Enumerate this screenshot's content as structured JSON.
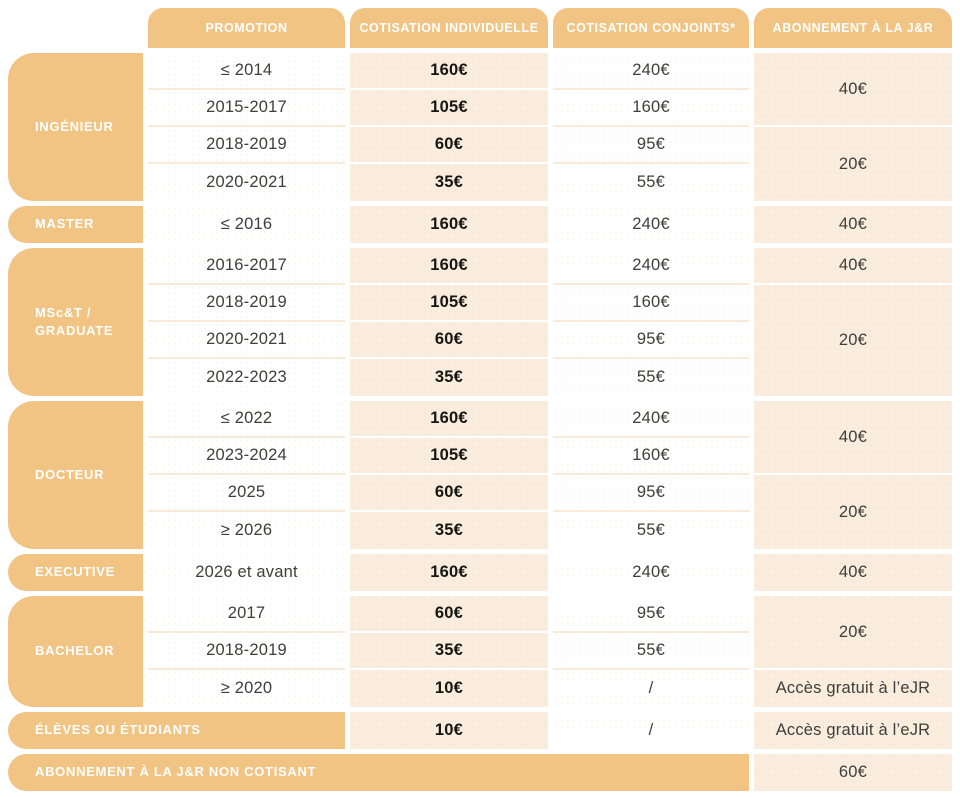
{
  "colors": {
    "orange": "#F1C483",
    "peach": "#FAEDDE",
    "sep": "#F8E9D8",
    "ink": "#3E3E3D",
    "ink-bold": "#161613"
  },
  "table": {
    "headers": {
      "promotion": "PROMOTION",
      "individual": "COTISATION INDIVIDUELLE",
      "conjoints": "COTISATION CONJOINTS*",
      "subscription": "ABONNEMENT À LA J&R"
    },
    "sections": [
      {
        "category": "INGÉNIEUR",
        "rows": [
          {
            "promotion": "≤ 2014",
            "individual": "160€",
            "conjoints": "240€"
          },
          {
            "promotion": "2015-2017",
            "individual": "105€",
            "conjoints": "160€"
          },
          {
            "promotion": "2018-2019",
            "individual": "60€",
            "conjoints": "95€"
          },
          {
            "promotion": "2020-2021",
            "individual": "35€",
            "conjoints": "55€"
          }
        ],
        "subscription": [
          {
            "value": "40€",
            "rows": 2
          },
          {
            "value": "20€",
            "rows": 2
          }
        ]
      },
      {
        "category": "MASTER",
        "rows": [
          {
            "promotion": "≤ 2016",
            "individual": "160€",
            "conjoints": "240€"
          }
        ],
        "subscription": [
          {
            "value": "40€",
            "rows": 1
          }
        ]
      },
      {
        "category": "MSc&T / GRADUATE",
        "rows": [
          {
            "promotion": "2016-2017",
            "individual": "160€",
            "conjoints": "240€"
          },
          {
            "promotion": "2018-2019",
            "individual": "105€",
            "conjoints": "160€"
          },
          {
            "promotion": "2020-2021",
            "individual": "60€",
            "conjoints": "95€"
          },
          {
            "promotion": "2022-2023",
            "individual": "35€",
            "conjoints": "55€"
          }
        ],
        "subscription": [
          {
            "value": "40€",
            "rows": 1
          },
          {
            "value": "20€",
            "rows": 3
          }
        ]
      },
      {
        "category": "DOCTEUR",
        "rows": [
          {
            "promotion": "≤ 2022",
            "individual": "160€",
            "conjoints": "240€"
          },
          {
            "promotion": "2023-2024",
            "individual": "105€",
            "conjoints": "160€"
          },
          {
            "promotion": "2025",
            "individual": "60€",
            "conjoints": "95€"
          },
          {
            "promotion": "≥ 2026",
            "individual": "35€",
            "conjoints": "55€"
          }
        ],
        "subscription": [
          {
            "value": "40€",
            "rows": 2
          },
          {
            "value": "20€",
            "rows": 2
          }
        ]
      },
      {
        "category": "EXECUTIVE",
        "rows": [
          {
            "promotion": "2026 et avant",
            "individual": "160€",
            "conjoints": "240€"
          }
        ],
        "subscription": [
          {
            "value": "40€",
            "rows": 1
          }
        ]
      },
      {
        "category": "BACHELOR",
        "rows": [
          {
            "promotion": "2017",
            "individual": "60€",
            "conjoints": "95€"
          },
          {
            "promotion": "2018-2019",
            "individual": "35€",
            "conjoints": "55€"
          },
          {
            "promotion": "≥ 2020",
            "individual": "10€",
            "conjoints": "/"
          }
        ],
        "subscription": [
          {
            "value": "20€",
            "rows": 2
          },
          {
            "value": "Accès gratuit à l’eJR",
            "rows": 1
          }
        ]
      },
      {
        "category": "ÉLÈVES OU ÉTUDIANTS",
        "rows": [
          {
            "individual": "10€",
            "conjoints": "/"
          }
        ],
        "subscription": [
          {
            "value": "Accès gratuit à l’eJR",
            "rows": 1
          }
        ]
      },
      {
        "category": "ABONNEMENT À LA J&R NON COTISANT",
        "rows": [],
        "subscription": [
          {
            "value": "60€",
            "rows": 1
          }
        ]
      }
    ]
  }
}
